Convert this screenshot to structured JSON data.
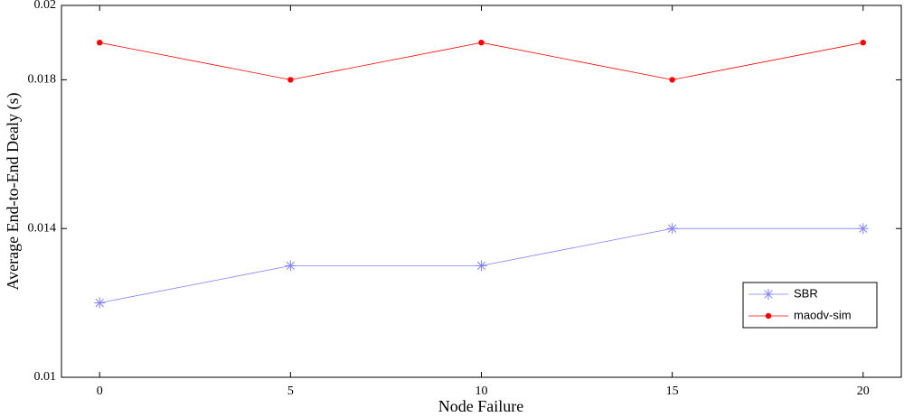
{
  "chart_data": {
    "type": "line",
    "x_label": "Node Failure",
    "y_label": "Average End-to-End Dealy (s)",
    "x": [
      0,
      5,
      10,
      15,
      20
    ],
    "series": [
      {
        "name": "SBR",
        "color": "#8080ff",
        "marker": "asterisk",
        "values": [
          0.012,
          0.013,
          0.013,
          0.014,
          0.014
        ]
      },
      {
        "name": "maodv-sim",
        "color": "#ff0000",
        "marker": "dot",
        "values": [
          0.019,
          0.018,
          0.019,
          0.018,
          0.019
        ]
      }
    ],
    "xlim": [
      -1,
      21
    ],
    "xticks": [
      0,
      5,
      10,
      15,
      20
    ],
    "ylim": [
      0.01,
      0.02
    ],
    "yticks": [
      0.01,
      0.014,
      0.018,
      0.02
    ],
    "grid": false,
    "legend": "lower right"
  }
}
